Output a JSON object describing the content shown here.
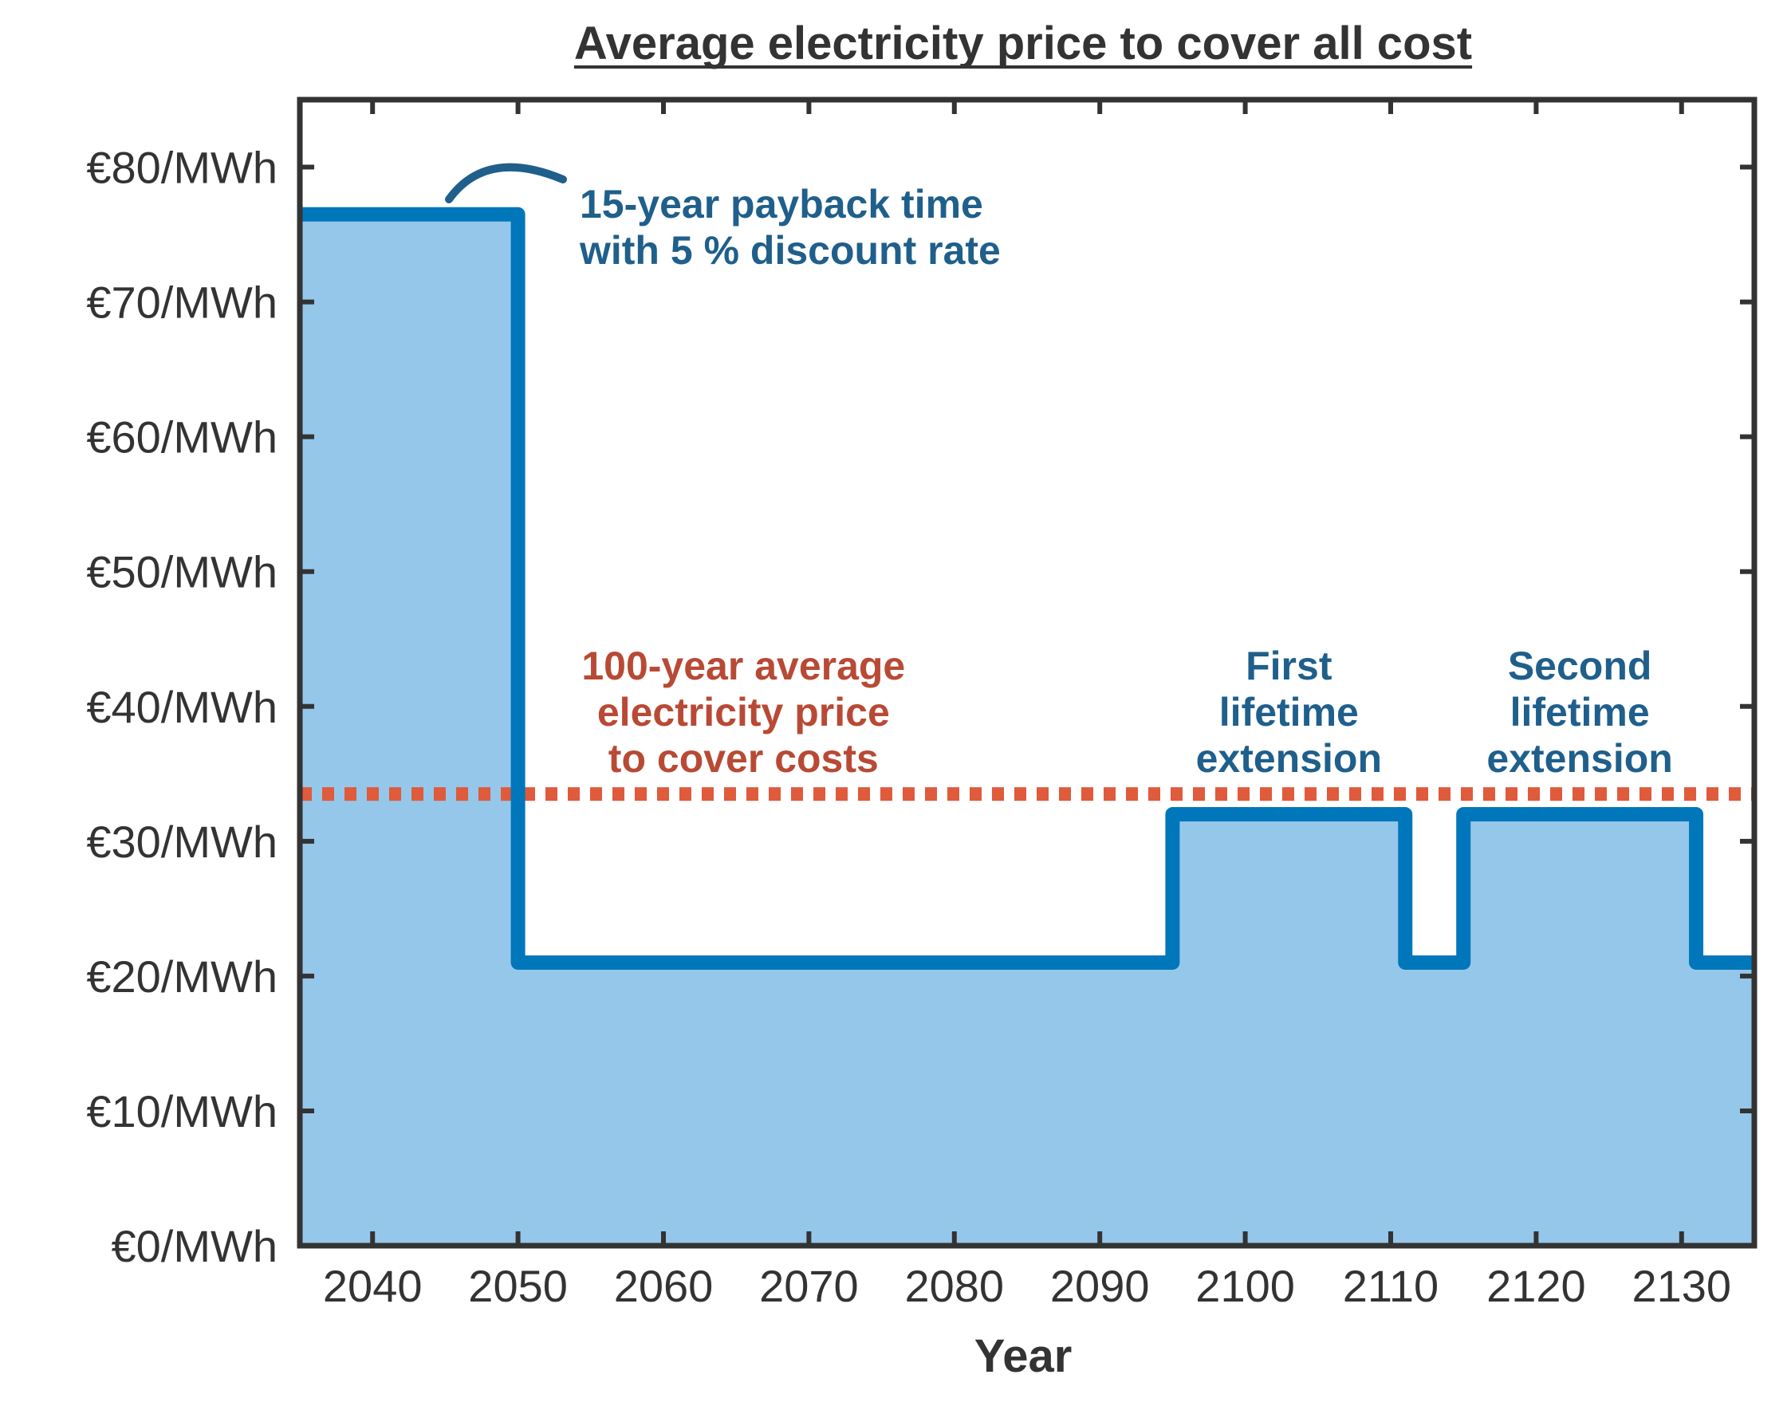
{
  "chart_data": {
    "type": "area",
    "title": "Average electricity price to cover all cost",
    "xlabel": "Year",
    "ylabel": "",
    "xlim": [
      2035,
      2135
    ],
    "ylim": [
      0,
      85
    ],
    "x_ticks": [
      2040,
      2050,
      2060,
      2070,
      2080,
      2090,
      2100,
      2110,
      2120,
      2130
    ],
    "x_tick_labels": [
      "2040",
      "2050",
      "2060",
      "2070",
      "2080",
      "2090",
      "2100",
      "2110",
      "2120",
      "2130"
    ],
    "y_ticks": [
      0,
      10,
      20,
      30,
      40,
      50,
      60,
      70,
      80
    ],
    "y_tick_labels": [
      "€0/MWh",
      "€10/MWh",
      "€20/MWh",
      "€30/MWh",
      "€40/MWh",
      "€50/MWh",
      "€60/MWh",
      "€70/MWh",
      "€80/MWh"
    ],
    "grid": false,
    "series": [
      {
        "step": "post",
        "color": "#0077bb",
        "fill_color": "#95c7ea",
        "x": [
          2035,
          2050,
          2095,
          2111,
          2115,
          2131,
          2135
        ],
        "y": [
          76.5,
          21,
          32,
          21,
          32,
          21,
          21
        ]
      }
    ],
    "reference_line": {
      "y": 33.5,
      "color": "#e05a3c",
      "style": "dotted"
    },
    "annotations": [
      {
        "lines": [
          "15-year payback time",
          "with 5 % discount rate"
        ],
        "x": 2039.5,
        "y": 76,
        "align": "left",
        "color": "#1f5f8b"
      },
      {
        "lines": [
          "100-year average",
          "electricity price",
          "to cover costs"
        ],
        "x": 2065.5,
        "y": 41,
        "align": "center",
        "color": "#b84a35"
      },
      {
        "lines": [
          "First",
          "lifetime",
          "extension"
        ],
        "x": 2103,
        "y": 41,
        "align": "center",
        "color": "#1f5f8b"
      },
      {
        "lines": [
          "Second",
          "lifetime",
          "extension"
        ],
        "x": 2123,
        "y": 41,
        "align": "center",
        "color": "#1f5f8b"
      }
    ]
  }
}
